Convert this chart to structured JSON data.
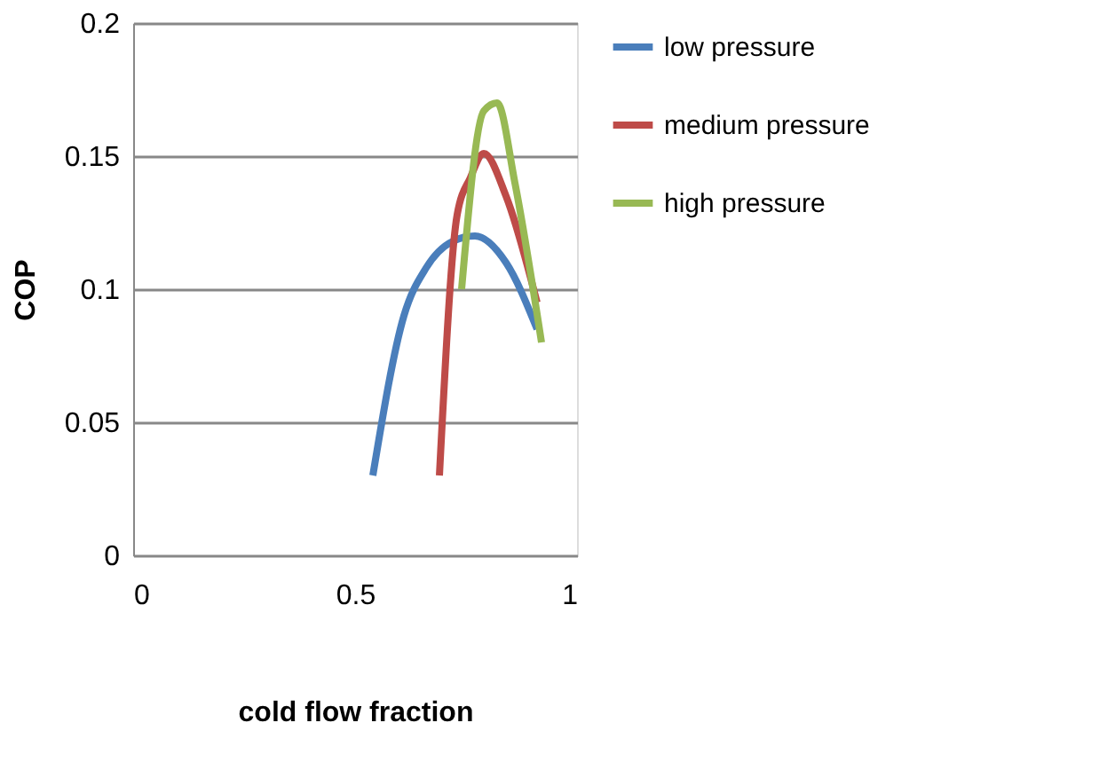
{
  "chart_data": {
    "type": "line",
    "xlabel": "cold flow fraction",
    "ylabel": "COP",
    "xlim": [
      0,
      1
    ],
    "xticks": [
      0,
      0.5,
      1
    ],
    "ylim": [
      0,
      0.2
    ],
    "yticks": [
      0,
      0.05,
      0.1,
      0.15,
      0.2
    ],
    "grid": "y",
    "legend": "right",
    "marker": "none",
    "line_style": "solid",
    "series": [
      {
        "name": "low pressure",
        "color": "#4a7ebb",
        "x": [
          0.54,
          0.61,
          0.66,
          0.72,
          0.77,
          0.84,
          0.91
        ],
        "values": [
          0.03,
          0.09,
          0.108,
          0.118,
          0.12,
          0.11,
          0.085
        ]
      },
      {
        "name": "medium pressure",
        "color": "#be4b48",
        "x": [
          0.69,
          0.73,
          0.76,
          0.79,
          0.84,
          0.91
        ],
        "values": [
          0.03,
          0.128,
          0.142,
          0.151,
          0.135,
          0.095
        ]
      },
      {
        "name": "high pressure",
        "color": "#98b954",
        "x": [
          0.74,
          0.79,
          0.82,
          0.86,
          0.92
        ],
        "values": [
          0.1,
          0.167,
          0.17,
          0.14,
          0.08
        ]
      }
    ]
  }
}
